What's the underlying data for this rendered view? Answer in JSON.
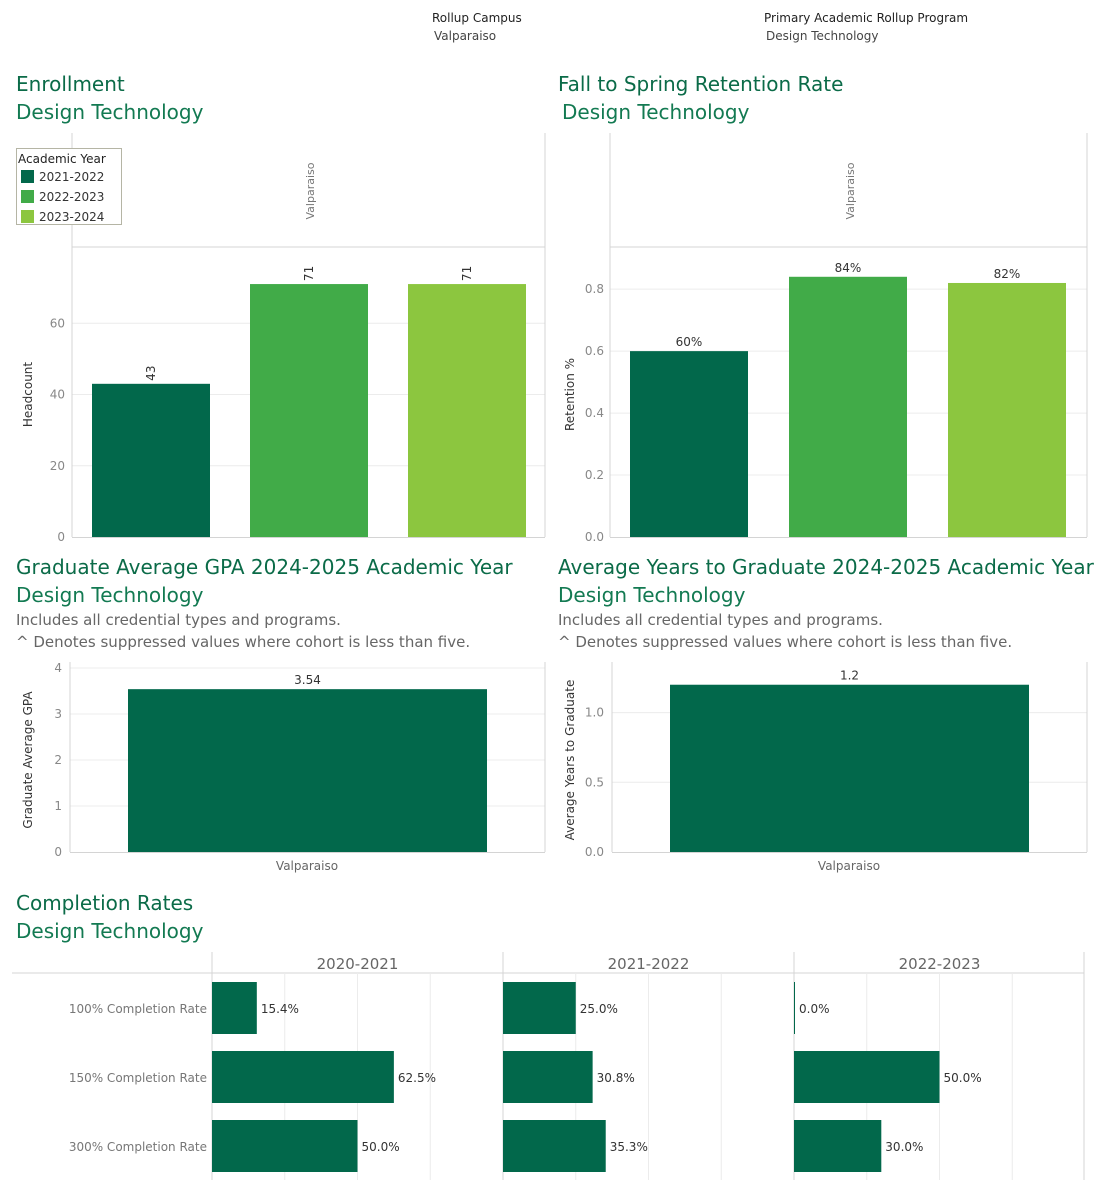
{
  "filters": {
    "campus_label": "Rollup Campus",
    "campus_value": "Valparaiso",
    "program_label": "Primary Academic Rollup Program",
    "program_value": "Design Technology"
  },
  "colors": {
    "y2021": "#02684b",
    "y2022": "#41ab48",
    "y2023": "#8cc63f",
    "title": "#0b6b48"
  },
  "enrollment": {
    "title": "Enrollment",
    "subtitle": "Design Technology",
    "legend_title": "Academic Year",
    "legend_items": [
      "2021-2022",
      "2022-2023",
      "2023-2024"
    ]
  },
  "retention": {
    "title": "Fall to Spring Retention Rate",
    "subtitle": "Design Technology"
  },
  "gpa": {
    "title": "Graduate Average GPA 2024-2025 Academic Year",
    "subtitle": "Design Technology",
    "note1": "Includes all credential types and programs.",
    "note2": "^ Denotes suppressed values where cohort is less than five."
  },
  "years": {
    "title": "Average Years to Graduate 2024-2025 Academic Year",
    "subtitle": "Design Technology",
    "note1": "Includes all credential types and programs.",
    "note2": "^ Denotes suppressed values where cohort is less than five."
  },
  "completion": {
    "title": "Completion Rates",
    "subtitle": "Design Technology"
  },
  "chart_data": [
    {
      "id": "enrollment",
      "type": "bar",
      "panel_label": "Valparaiso",
      "categories": [
        "2021-2022",
        "2022-2023",
        "2023-2024"
      ],
      "values": [
        43,
        71,
        71
      ],
      "labels": [
        "43",
        "71",
        "71"
      ],
      "ylabel": "Headcount",
      "yticks": [
        0,
        20,
        40,
        60
      ],
      "ylim": [
        0,
        80
      ],
      "legend": "top-left"
    },
    {
      "id": "retention",
      "type": "bar",
      "panel_label": "Valparaiso",
      "categories": [
        "2021-2022",
        "2022-2023",
        "2023-2024"
      ],
      "values": [
        0.6,
        0.84,
        0.82
      ],
      "labels": [
        "60%",
        "84%",
        "82%"
      ],
      "ylabel": "Retention %",
      "yticks": [
        "0.0",
        "0.2",
        "0.4",
        "0.6",
        "0.8"
      ],
      "ylim": [
        0,
        0.92
      ]
    },
    {
      "id": "gpa",
      "type": "bar",
      "categories": [
        "Valparaiso"
      ],
      "values": [
        3.54
      ],
      "labels": [
        "3.54"
      ],
      "ylabel": "Graduate Average GPA",
      "yticks": [
        0,
        1,
        2,
        3,
        4
      ],
      "ylim": [
        0,
        4.0
      ]
    },
    {
      "id": "years",
      "type": "bar",
      "categories": [
        "Valparaiso"
      ],
      "values": [
        1.2
      ],
      "labels": [
        "1.2"
      ],
      "ylabel": "Average Years to Graduate",
      "yticks": [
        "0.0",
        "0.5",
        "1.0"
      ],
      "ylim": [
        0,
        1.32
      ]
    },
    {
      "id": "completion",
      "type": "bar",
      "orientation": "horizontal",
      "rows": [
        "100% Completion Rate",
        "150% Completion Rate",
        "300% Completion Rate"
      ],
      "columns": [
        "2020-2021",
        "2021-2022",
        "2022-2023"
      ],
      "values": [
        [
          15.4,
          62.5,
          50.0
        ],
        [
          25.0,
          30.8,
          35.3
        ],
        [
          0.0,
          50.0,
          30.0
        ]
      ],
      "labels": [
        [
          "15.4%",
          "62.5%",
          "50.0%"
        ],
        [
          "25.0%",
          "30.8%",
          "35.3%"
        ],
        [
          "0.0%",
          "50.0%",
          "30.0%"
        ]
      ],
      "xlim": [
        0,
        100
      ]
    }
  ]
}
